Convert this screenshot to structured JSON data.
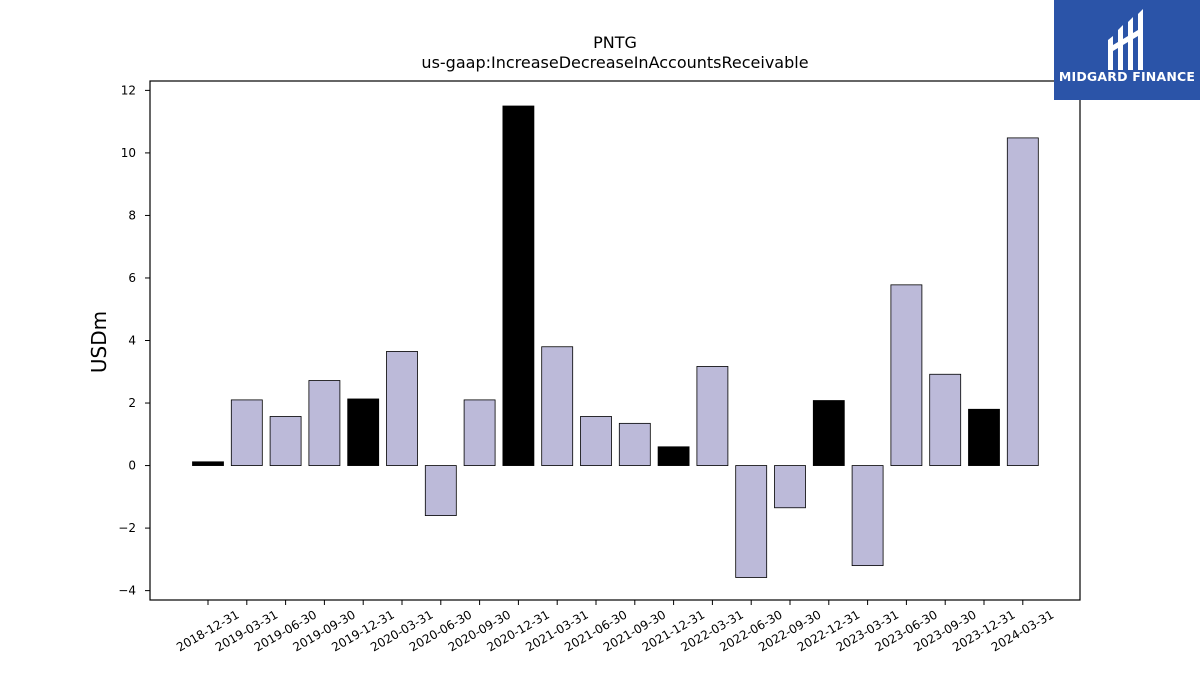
{
  "logo": {
    "text": "MIDGARD FINANCE",
    "icon": "midgard-logo-icon",
    "background": "#2b54a8"
  },
  "chart_data": {
    "type": "bar",
    "title": "PNTG",
    "subtitle": "us-gaap:IncreaseDecreaseInAccountsReceivable",
    "xlabel": "",
    "ylabel": "USDm",
    "ylim": [
      -4.3,
      12.3
    ],
    "yticks": [
      -4,
      -2,
      0,
      2,
      4,
      6,
      8,
      10,
      12
    ],
    "ytick_labels": [
      "−4",
      "−2",
      "0",
      "2",
      "4",
      "6",
      "8",
      "10",
      "12"
    ],
    "grid": false,
    "colors": {
      "quarterly": "#bcbad9",
      "annual": "#000000"
    },
    "categories": [
      "2018-12-31",
      "2019-03-31",
      "2019-06-30",
      "2019-09-30",
      "2019-12-31",
      "2020-03-31",
      "2020-06-30",
      "2020-09-30",
      "2020-12-31",
      "2021-03-31",
      "2021-06-30",
      "2021-09-30",
      "2021-12-31",
      "2022-03-31",
      "2022-06-30",
      "2022-09-30",
      "2022-12-31",
      "2023-03-31",
      "2023-06-30",
      "2023-09-30",
      "2023-12-31",
      "2024-03-31"
    ],
    "values": [
      0.12,
      2.1,
      1.57,
      2.72,
      2.13,
      3.65,
      -1.6,
      2.1,
      11.5,
      3.8,
      1.57,
      1.35,
      0.6,
      3.17,
      -3.58,
      -1.35,
      2.08,
      -3.2,
      5.78,
      2.92,
      1.8,
      10.48
    ],
    "annual": [
      true,
      false,
      false,
      false,
      true,
      false,
      false,
      false,
      true,
      false,
      false,
      false,
      true,
      false,
      false,
      false,
      true,
      false,
      false,
      false,
      true,
      false
    ]
  }
}
